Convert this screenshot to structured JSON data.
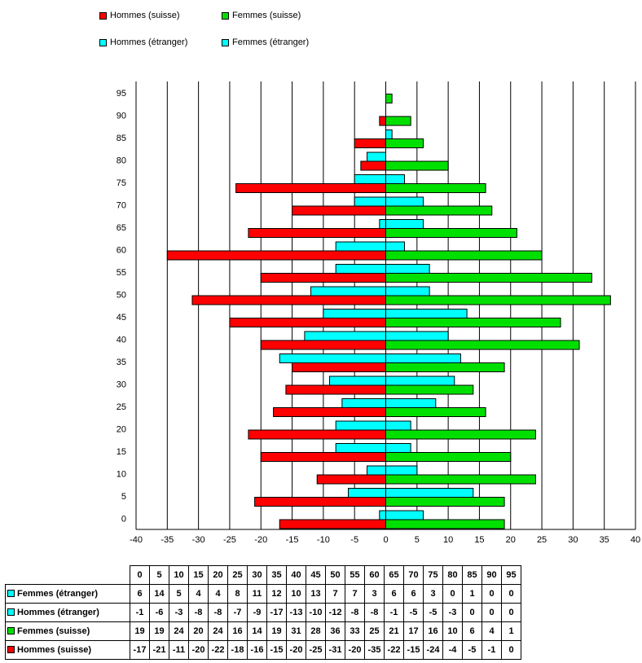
{
  "colors": {
    "hommes_suisse": "#ff0000",
    "femmes_suisse": "#00e000",
    "hommes_etranger": "#00ffff",
    "femmes_etranger": "#00ffff"
  },
  "legend": [
    {
      "name": "Hommes (suisse)",
      "color": "#ff0000"
    },
    {
      "name": "Femmes (suisse)",
      "color": "#00e000"
    },
    {
      "name": "Hommes (étranger)",
      "color": "#00ffff"
    },
    {
      "name": "Femmes (étranger)",
      "color": "#00ffff"
    }
  ],
  "chart_data": {
    "type": "bar",
    "orientation": "horizontal",
    "title": "",
    "xlabel": "",
    "ylabel": "",
    "xlim": [
      -40,
      40
    ],
    "xticks": [
      -40,
      -35,
      -30,
      -25,
      -20,
      -15,
      -10,
      -5,
      0,
      5,
      10,
      15,
      20,
      25,
      30,
      35,
      40
    ],
    "grid": "vertical",
    "legend_position": "top",
    "categories": [
      "0",
      "5",
      "10",
      "15",
      "20",
      "25",
      "30",
      "35",
      "40",
      "45",
      "50",
      "55",
      "60",
      "65",
      "70",
      "75",
      "80",
      "85",
      "90",
      "95"
    ],
    "series": [
      {
        "name": "Femmes (étranger)",
        "values": [
          6,
          14,
          5,
          4,
          4,
          8,
          11,
          12,
          10,
          13,
          7,
          7,
          3,
          6,
          6,
          3,
          0,
          1,
          0,
          0
        ]
      },
      {
        "name": "Hommes (étranger)",
        "values": [
          -1,
          -6,
          -3,
          -8,
          -8,
          -7,
          -9,
          -17,
          -13,
          -10,
          -12,
          -8,
          -8,
          -1,
          -5,
          -5,
          -3,
          0,
          0,
          0
        ]
      },
      {
        "name": "Femmes (suisse)",
        "values": [
          19,
          19,
          24,
          20,
          24,
          16,
          14,
          19,
          31,
          28,
          36,
          33,
          25,
          21,
          17,
          16,
          10,
          6,
          4,
          1
        ]
      },
      {
        "name": "Hommes (suisse)",
        "values": [
          -17,
          -21,
          -11,
          -20,
          -22,
          -18,
          -16,
          -15,
          -20,
          -25,
          -31,
          -20,
          -35,
          -22,
          -15,
          -24,
          -4,
          -5,
          -1,
          0
        ]
      }
    ]
  }
}
